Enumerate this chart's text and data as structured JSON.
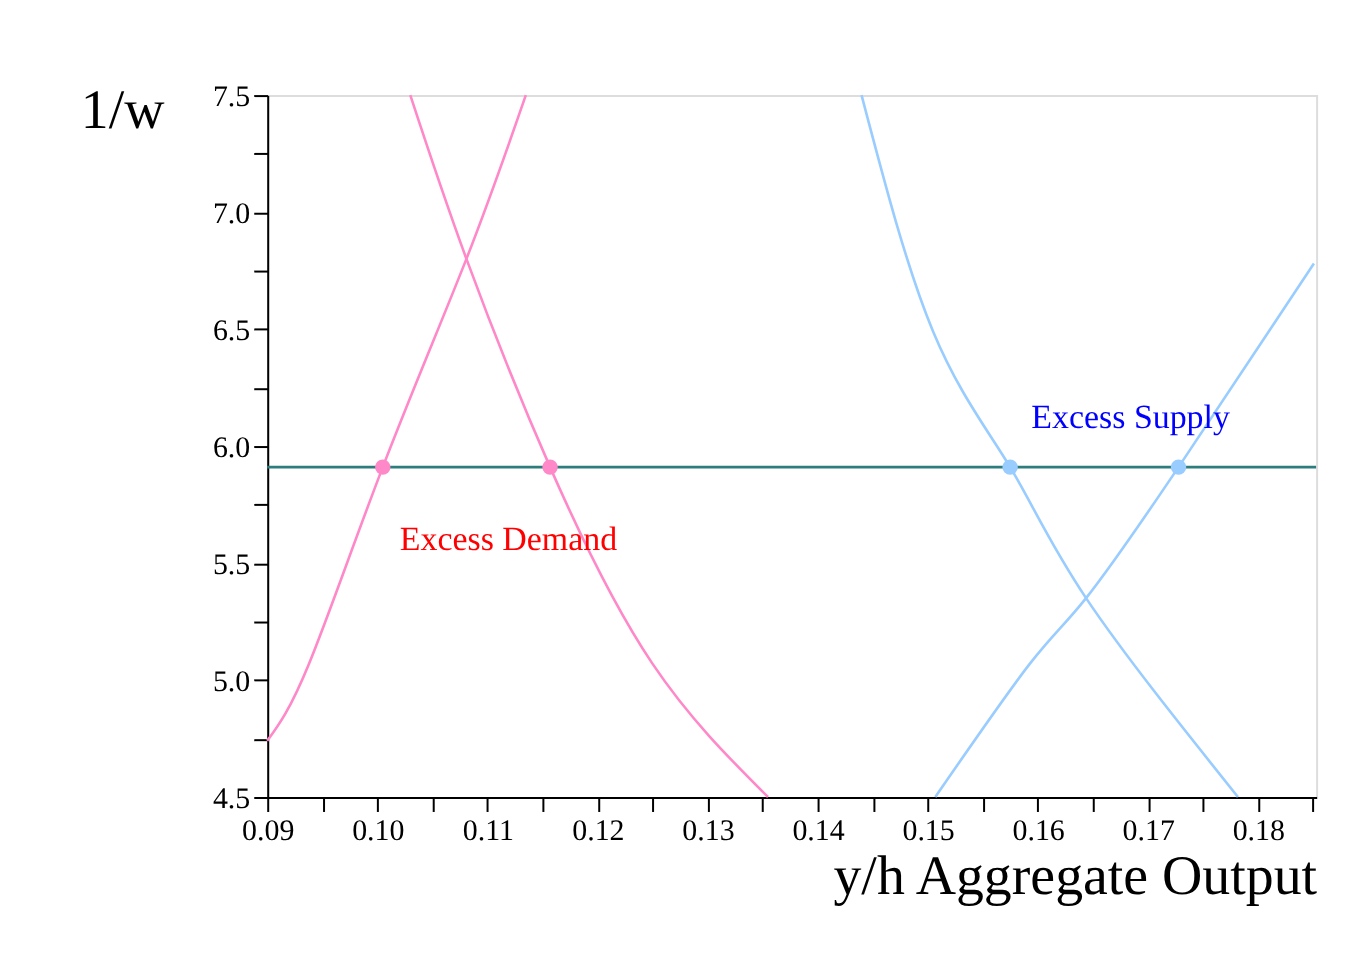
{
  "chart_data": {
    "type": "line",
    "xlabel": "y/h Aggregate Output",
    "ylabel": "1/w",
    "xlim": [
      0.09,
      0.1853
    ],
    "ylim": [
      4.5,
      7.5
    ],
    "xticks": [
      {
        "value": 0.09,
        "label": "0.09"
      },
      {
        "value": 0.095,
        "label": null
      },
      {
        "value": 0.1,
        "label": "0.10"
      },
      {
        "value": 0.105,
        "label": null
      },
      {
        "value": 0.11,
        "label": "0.11"
      },
      {
        "value": 0.115,
        "label": null
      },
      {
        "value": 0.12,
        "label": "0.12"
      },
      {
        "value": 0.125,
        "label": null
      },
      {
        "value": 0.13,
        "label": "0.13"
      },
      {
        "value": 0.135,
        "label": null
      },
      {
        "value": 0.14,
        "label": "0.14"
      },
      {
        "value": 0.145,
        "label": null
      },
      {
        "value": 0.15,
        "label": "0.15"
      },
      {
        "value": 0.155,
        "label": null
      },
      {
        "value": 0.16,
        "label": "0.16"
      },
      {
        "value": 0.165,
        "label": null
      },
      {
        "value": 0.17,
        "label": "0.17"
      },
      {
        "value": 0.175,
        "label": null
      },
      {
        "value": 0.18,
        "label": "0.18"
      },
      {
        "value": 0.185,
        "label": null
      }
    ],
    "yticks": [
      4.5,
      {
        "value": 4.75,
        "label": null
      },
      {
        "value": 5.0,
        "label": "5.0"
      },
      {
        "value": 5.25,
        "label": null
      },
      5.5,
      {
        "value": 5.75,
        "label": null
      },
      {
        "value": 6.0,
        "label": "6.0"
      },
      {
        "value": 6.25,
        "label": null
      },
      6.5,
      {
        "value": 6.75,
        "label": null
      },
      {
        "value": 7.0,
        "label": "7.0"
      },
      {
        "value": 7.25,
        "label": null
      },
      7.5
    ],
    "grid": false,
    "marker": "none",
    "line_style": "solid",
    "series": [
      {
        "color": "#ff88c8",
        "x": [
          0.09,
          0.0938,
          0.1005,
          0.1081,
          0.1135
        ],
        "values": [
          4.74,
          5.07,
          5.91,
          6.8,
          7.5
        ]
      },
      {
        "color": "#ff88c8",
        "x": [
          0.103,
          0.1081,
          0.1157,
          0.125,
          0.1355
        ],
        "values": [
          7.5,
          6.8,
          5.91,
          5.07,
          4.5
        ]
      },
      {
        "color": "#99ccff",
        "x": [
          0.144,
          0.1505,
          0.1575,
          0.1644,
          0.1782
        ],
        "values": [
          7.5,
          6.49,
          5.91,
          5.35,
          4.5
        ]
      },
      {
        "color": "#99ccff",
        "x": [
          0.1507,
          0.1593,
          0.1644,
          0.1728,
          0.1851
        ],
        "values": [
          4.5,
          5.07,
          5.35,
          5.91,
          6.78
        ]
      },
      {
        "type": "scatter",
        "marker": "circle",
        "color": "#ff88c8",
        "x": [
          0.1005,
          0.1157
        ],
        "values": [
          5.91,
          5.91
        ]
      },
      {
        "type": "scatter",
        "marker": "circle",
        "color": "#99ccff",
        "x": [
          0.1575,
          0.1728
        ],
        "values": [
          5.91,
          5.91
        ]
      }
    ],
    "ref_lines": [
      {
        "axis": "y",
        "value": 5.91,
        "color": "#2e7d7d"
      }
    ],
    "annotations": [
      "Excess Demand",
      "Excess Supply"
    ]
  }
}
